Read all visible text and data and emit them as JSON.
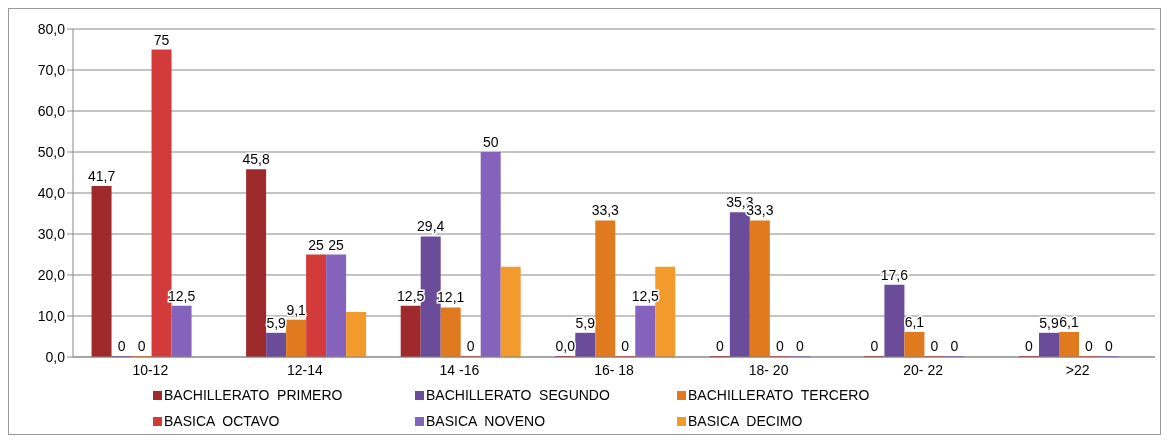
{
  "chart_data": {
    "type": "bar",
    "categories": [
      "10-12",
      "12-14",
      "14 -16",
      "16- 18",
      "18- 20",
      "20- 22",
      ">22"
    ],
    "series": [
      {
        "name": "BACHILLERATO  PRIMERO",
        "color": "#9e2a2b",
        "values": [
          41.7,
          45.8,
          12.5,
          0,
          0,
          0,
          0
        ],
        "value_labels": [
          "41,7",
          "45,8",
          "12,5",
          "0,0",
          "0",
          "0",
          "0"
        ]
      },
      {
        "name": "BACHILLERATO  SEGUNDO",
        "color": "#6b4c9a",
        "values": [
          0,
          5.9,
          29.4,
          5.9,
          35.3,
          17.6,
          5.9
        ],
        "value_labels": [
          "0",
          "5,9",
          "29,4",
          "5,9",
          "35,3",
          "17,6",
          "5,9"
        ]
      },
      {
        "name": "BACHILLERATO  TERCERO",
        "color": "#e07a1f",
        "values": [
          0,
          9.1,
          12.1,
          33.3,
          33.3,
          6.1,
          6.1
        ],
        "value_labels": [
          "0",
          "9,1",
          "12,1",
          "33,3",
          "33,3",
          "6,1",
          "6,1"
        ]
      },
      {
        "name": "BASICA  OCTAVO",
        "color": "#d33b3b",
        "values": [
          75,
          25,
          0,
          0,
          0,
          0,
          0
        ],
        "value_labels": [
          "75",
          "25",
          "0",
          "0",
          "0",
          "0",
          "0"
        ]
      },
      {
        "name": "BASICA  NOVENO",
        "color": "#8562bb",
        "values": [
          12.5,
          25,
          50,
          12.5,
          0,
          0,
          0
        ],
        "value_labels": [
          "12,5",
          "25",
          "50",
          "12,5",
          "0",
          "0",
          "0"
        ]
      },
      {
        "name": "BASICA  DECIMO",
        "color": "#f39a2c",
        "values": [
          null,
          11,
          22,
          22,
          null,
          null,
          null
        ],
        "value_labels": [
          null,
          null,
          null,
          null,
          null,
          null,
          null
        ]
      }
    ],
    "ylim": [
      0,
      80
    ],
    "yticks": [
      {
        "value": 0,
        "label": "0,0"
      },
      {
        "value": 10,
        "label": "10,0"
      },
      {
        "value": 20,
        "label": "20,0"
      },
      {
        "value": 30,
        "label": "30,0"
      },
      {
        "value": 40,
        "label": "40,0"
      },
      {
        "value": 50,
        "label": "50,0"
      },
      {
        "value": 60,
        "label": "60,0"
      },
      {
        "value": 70,
        "label": "70,0"
      },
      {
        "value": 80,
        "label": "80,0"
      }
    ],
    "grid": "y",
    "legend": "bottom"
  }
}
